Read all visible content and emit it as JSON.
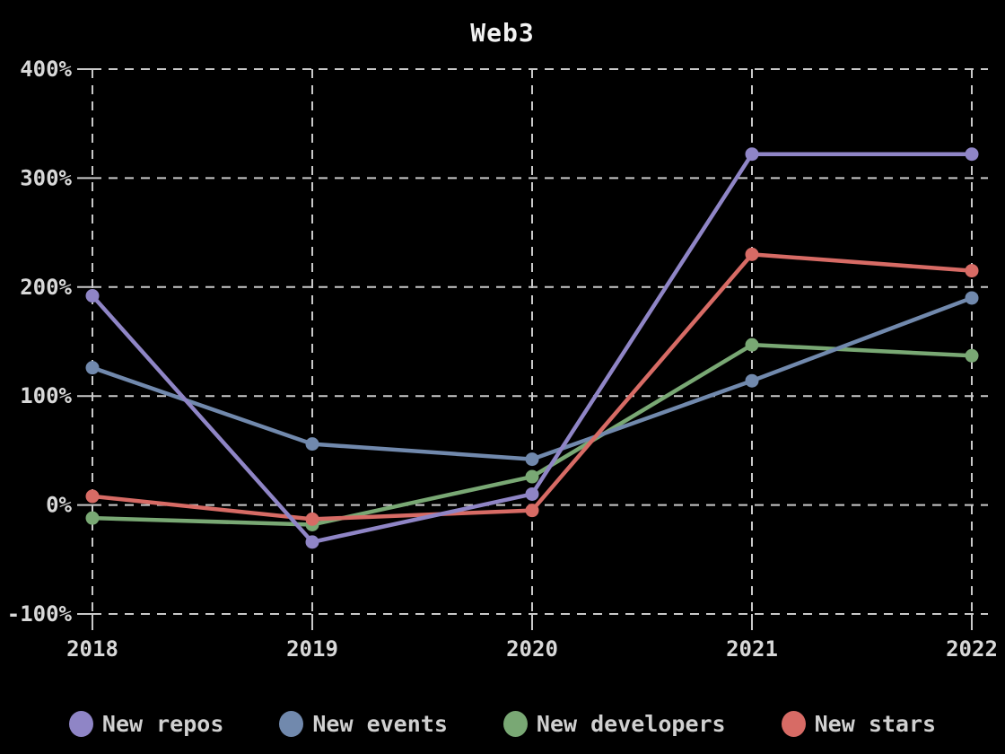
{
  "colors": {
    "background": "#000000",
    "title_text": "#f2f2f2",
    "tick_text": "#d8d8d8",
    "grid": "#c9c9c9",
    "legend_text": "#d0d0d0"
  },
  "chart_data": {
    "type": "line",
    "title": "Web3",
    "categories": [
      "2018",
      "2019",
      "2020",
      "2021",
      "2022"
    ],
    "series": [
      {
        "name": "New repos",
        "color": "#8f85c6",
        "values": [
          192,
          -34,
          10,
          322,
          322
        ]
      },
      {
        "name": "New events",
        "color": "#7189ad",
        "values": [
          126,
          56,
          42,
          114,
          190
        ]
      },
      {
        "name": "New developers",
        "color": "#79a874",
        "values": [
          -12,
          -18,
          26,
          147,
          137
        ]
      },
      {
        "name": "New stars",
        "color": "#d76b65",
        "values": [
          8,
          -13,
          -5,
          230,
          215
        ]
      }
    ],
    "draw_order": [
      2,
      1,
      3,
      0
    ],
    "ylim": [
      -100,
      400
    ],
    "yticks": [
      {
        "value": 400,
        "label": "400%"
      },
      {
        "value": 300,
        "label": "300%"
      },
      {
        "value": 200,
        "label": "200%"
      },
      {
        "value": 100,
        "label": "100%"
      },
      {
        "value": 0,
        "label": "0%"
      },
      {
        "value": -100,
        "label": "-100%"
      }
    ],
    "xlabel": "",
    "ylabel": "",
    "grid": "dashed",
    "legend_position": "bottom"
  }
}
